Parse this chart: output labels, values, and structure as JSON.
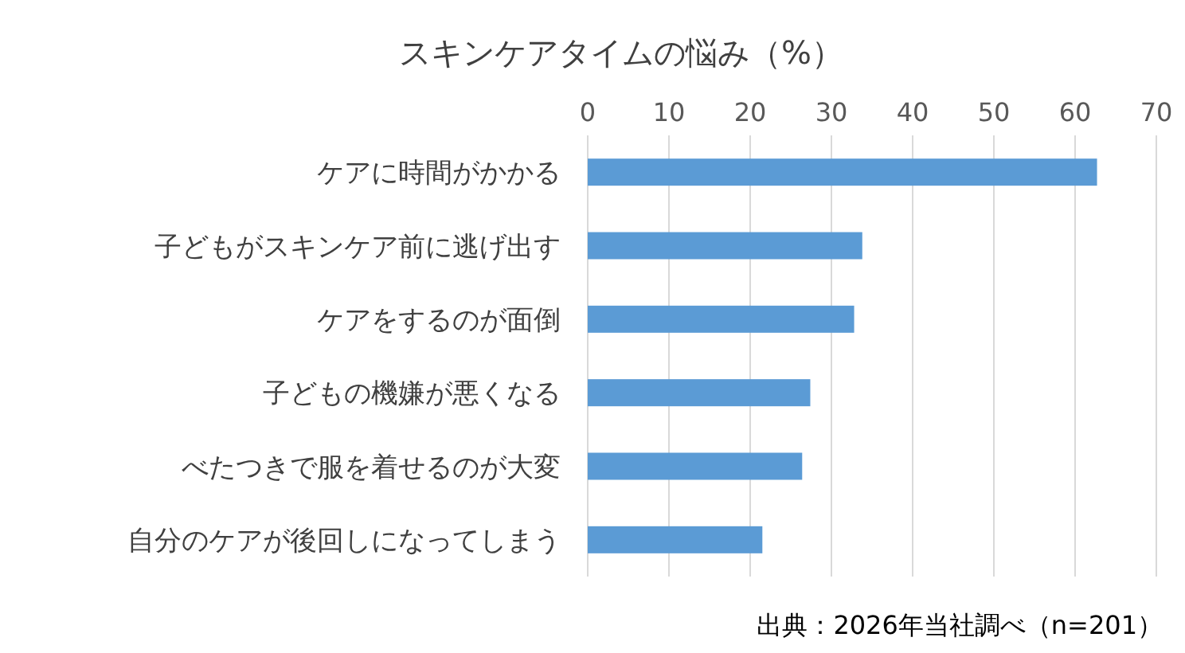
{
  "chart_data": {
    "type": "bar",
    "orientation": "horizontal",
    "title": "スキンケアタイムの悩み（%）",
    "categories": [
      "ケアに時間がかかる",
      "子どもがスキンケア前に逃げ出す",
      "ケアをするのが面倒",
      "子どもの機嫌が悪くなる",
      "べたつきで服を着せるのが大変",
      "自分のケアが後回しになってしまう"
    ],
    "values": [
      62.7,
      33.8,
      32.8,
      27.4,
      26.4,
      21.5
    ],
    "color": "#5b9bd5",
    "xlim": [
      0,
      70
    ],
    "xticks": [
      0,
      10,
      20,
      30,
      40,
      50,
      60,
      70
    ],
    "grid": "x",
    "annotations": [
      "出典：2026年当社調べ（n=201）"
    ]
  }
}
